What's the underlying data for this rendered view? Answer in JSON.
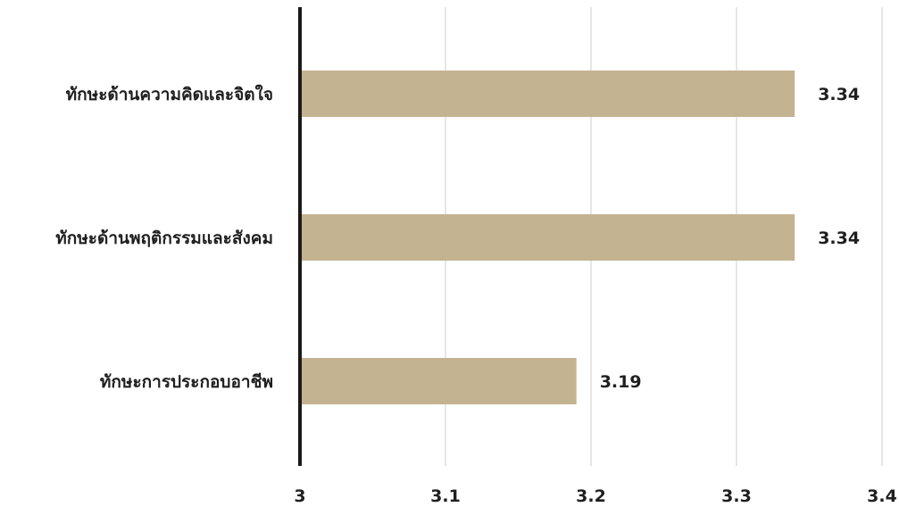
{
  "chart_data": {
    "type": "bar",
    "orientation": "horizontal",
    "title": "",
    "xlabel": "",
    "ylabel": "",
    "categories": [
      "ทักษะด้านความคิดและจิตใจ",
      "ทักษะด้านพฤติกรรมและสังคม",
      "ทักษะการประกอบอาชีพ"
    ],
    "values": [
      3.34,
      3.34,
      3.19
    ],
    "value_labels": [
      "3.34",
      "3.34",
      "3.19"
    ],
    "xlim": [
      3,
      3.4
    ],
    "ticks": [
      3,
      3.1,
      3.2,
      3.3,
      3.4
    ],
    "tick_labels": [
      "3",
      "3.1",
      "3.2",
      "3.3",
      "3.4"
    ],
    "grid": true,
    "legend": "none",
    "colors": {
      "bar": "#c4b391",
      "grid": "#cccccc",
      "axis": "#1a1a1a",
      "text": "#1f1f1f"
    }
  }
}
